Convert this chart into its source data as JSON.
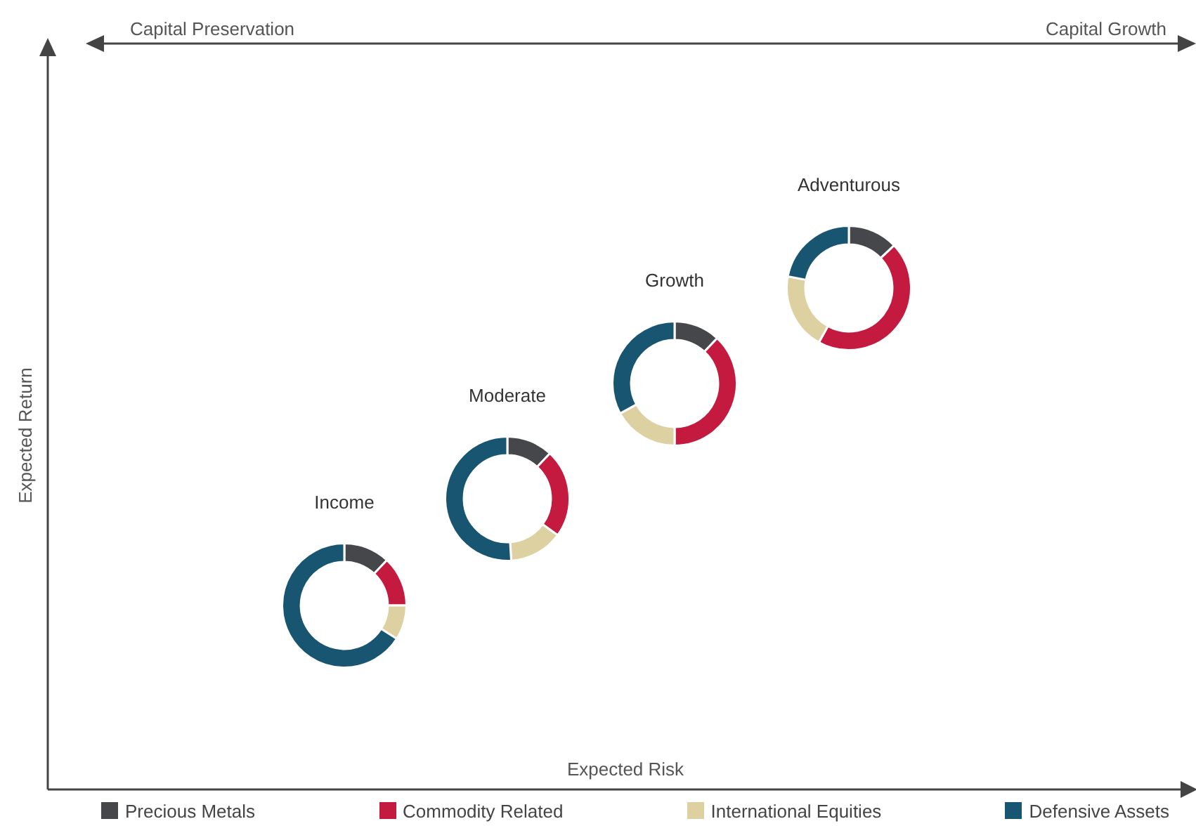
{
  "chart_data": [
    {
      "type": "donut",
      "title": "Income",
      "categories": [
        "Precious Metals",
        "Commodity Related",
        "International Equities",
        "Defensive Assets"
      ],
      "values": [
        12,
        13,
        9,
        66
      ],
      "colors": [
        "#45474b",
        "#c41a40",
        "#ddd1a2",
        "#175570"
      ],
      "legend": "bottom"
    },
    {
      "type": "donut",
      "title": "Moderate",
      "categories": [
        null,
        null,
        null,
        null
      ],
      "values": [
        12,
        23,
        14,
        51
      ],
      "colors": [
        "#45474b",
        "#c41a40",
        "#ddd1a2",
        "#175570"
      ]
    },
    {
      "type": "donut",
      "title": "Growth",
      "categories": [
        null,
        null,
        null,
        null
      ],
      "values": [
        12,
        38,
        17,
        33
      ],
      "colors": [
        "#45474b",
        "#c41a40",
        "#ddd1a2",
        "#175570"
      ]
    },
    {
      "type": "donut",
      "title": "Adventurous",
      "categories": [
        null,
        null,
        null,
        null
      ],
      "values": [
        13,
        45,
        20,
        22
      ],
      "colors": [
        "#45474b",
        "#c41a40",
        "#ddd1a2",
        "#175570"
      ]
    },
    {
      "type": "other",
      "xlabel": "Expected Risk",
      "ylabel": "Expected Return",
      "annotations": [
        "Capital Preservation",
        "Capital Growth"
      ]
    }
  ]
}
